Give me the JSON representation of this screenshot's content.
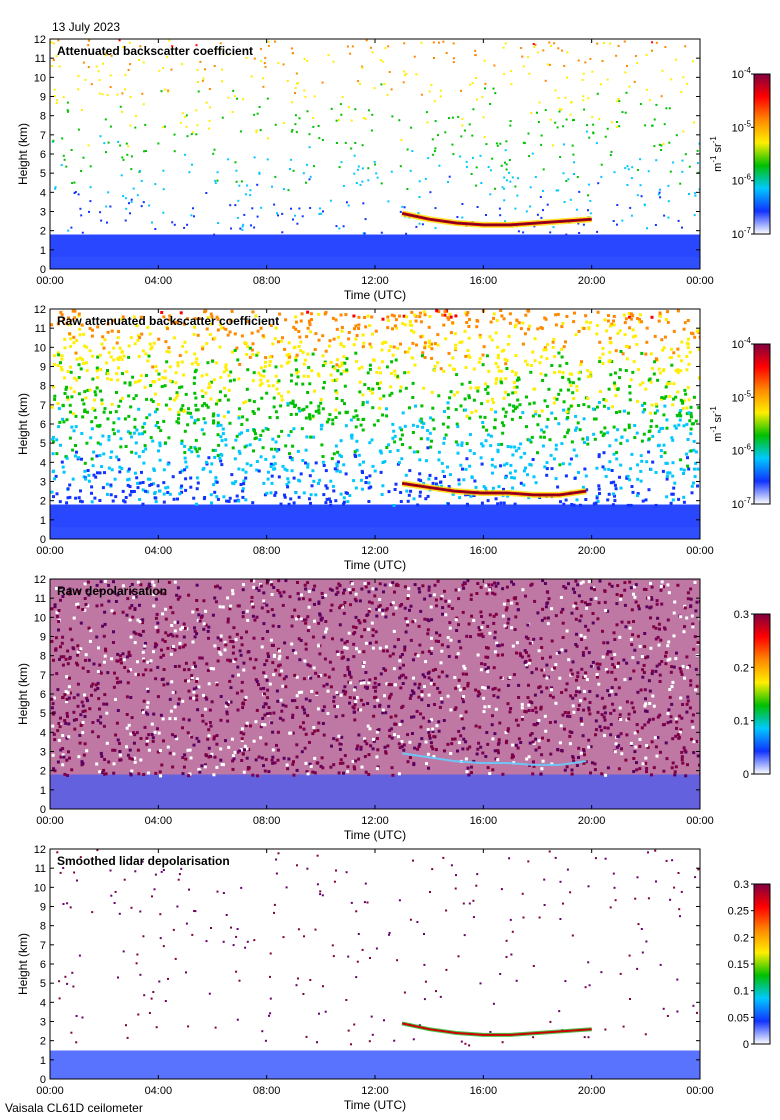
{
  "header": {
    "date": "13 July 2023"
  },
  "footer": {
    "instrument": "Vaisala CL61D ceilometer"
  },
  "colors": {
    "frame": "#000000",
    "background": "#ffffff"
  },
  "chart_data": [
    {
      "type": "heatmap",
      "title": "Attenuated backscatter coefficient",
      "xlabel": "Time (UTC)",
      "ylabel": "Height (km)",
      "x_ticks": [
        "00:00",
        "04:00",
        "08:00",
        "12:00",
        "16:00",
        "20:00",
        "00:00"
      ],
      "x_range_hours": [
        0,
        24
      ],
      "y_ticks": [
        "0",
        "1",
        "2",
        "3",
        "4",
        "5",
        "6",
        "7",
        "8",
        "9",
        "10",
        "11",
        "12"
      ],
      "ylim": [
        0,
        12
      ],
      "colorbar": {
        "scale": "log",
        "ticks": [
          {
            "value": 1e-07,
            "base": "10",
            "exp": "-7"
          },
          {
            "value": 1e-06,
            "base": "10",
            "exp": "-6"
          },
          {
            "value": 1e-05,
            "base": "10",
            "exp": "-5"
          },
          {
            "value": 0.0001,
            "base": "10",
            "exp": "-4"
          }
        ],
        "unit": {
          "m": "m",
          "m_exp": "-1",
          "sr": "sr",
          "sr_exp": "-1"
        },
        "colormap": [
          "#ffffff",
          "#1133ff",
          "#00c8ff",
          "#00c000",
          "#ffee00",
          "#ff8800",
          "#ff0000",
          "#800040"
        ]
      },
      "features": {
        "boundary_layer_top_km": 1.8,
        "cloud_layer": {
          "start_hour": 13.0,
          "end_hour": 20.0,
          "height_km": [
            2.9,
            2.6,
            2.4,
            2.3,
            2.3,
            2.4,
            2.5,
            2.6
          ]
        },
        "noise_density": 0.35
      }
    },
    {
      "type": "heatmap",
      "title": "Raw attenuated backscatter coefficient",
      "xlabel": "Time (UTC)",
      "ylabel": "Height (km)",
      "x_ticks": [
        "00:00",
        "04:00",
        "08:00",
        "12:00",
        "16:00",
        "20:00",
        "00:00"
      ],
      "x_range_hours": [
        0,
        24
      ],
      "y_ticks": [
        "0",
        "1",
        "2",
        "3",
        "4",
        "5",
        "6",
        "7",
        "8",
        "9",
        "10",
        "11",
        "12"
      ],
      "ylim": [
        0,
        12
      ],
      "colorbar": {
        "scale": "log",
        "ticks": [
          {
            "value": 1e-07,
            "base": "10",
            "exp": "-7"
          },
          {
            "value": 1e-06,
            "base": "10",
            "exp": "-6"
          },
          {
            "value": 1e-05,
            "base": "10",
            "exp": "-5"
          },
          {
            "value": 0.0001,
            "base": "10",
            "exp": "-4"
          }
        ],
        "unit": {
          "m": "m",
          "m_exp": "-1",
          "sr": "sr",
          "sr_exp": "-1"
        },
        "colormap": [
          "#ffffff",
          "#1133ff",
          "#00c8ff",
          "#00c000",
          "#ffee00",
          "#ff8800",
          "#ff0000",
          "#800040"
        ]
      },
      "features": {
        "boundary_layer_top_km": 1.8,
        "cloud_layer": {
          "start_hour": 13.0,
          "end_hour": 19.8,
          "height_km": [
            2.9,
            2.7,
            2.5,
            2.4,
            2.4,
            2.3,
            2.3,
            2.5
          ]
        },
        "noise_density": 1.0
      }
    },
    {
      "type": "heatmap",
      "title": "Raw depolarisation",
      "xlabel": "Time (UTC)",
      "ylabel": "Height (km)",
      "x_ticks": [
        "00:00",
        "04:00",
        "08:00",
        "12:00",
        "16:00",
        "20:00",
        "00:00"
      ],
      "x_range_hours": [
        0,
        24
      ],
      "y_ticks": [
        "0",
        "1",
        "2",
        "3",
        "4",
        "5",
        "6",
        "7",
        "8",
        "9",
        "10",
        "11",
        "12"
      ],
      "ylim": [
        0,
        12
      ],
      "colorbar": {
        "scale": "linear",
        "ticks": [
          {
            "value": 0,
            "label": "0"
          },
          {
            "value": 0.1,
            "label": "0.1"
          },
          {
            "value": 0.2,
            "label": "0.2"
          },
          {
            "value": 0.3,
            "label": "0.3"
          }
        ],
        "range": [
          0,
          0.3
        ],
        "colormap": [
          "#ffffff",
          "#1133ff",
          "#00c8ff",
          "#00c000",
          "#ffee00",
          "#ff8800",
          "#ff0000",
          "#800040"
        ]
      },
      "features": {
        "boundary_layer_top_km": 1.8,
        "cloud_layer": {
          "start_hour": 13.0,
          "end_hour": 19.8,
          "height_km": [
            2.9,
            2.7,
            2.5,
            2.4,
            2.4,
            2.3,
            2.3,
            2.5
          ]
        },
        "noise_density": 1.0
      }
    },
    {
      "type": "heatmap",
      "title": "Smoothed lidar depolarisation",
      "xlabel": "Time (UTC)",
      "ylabel": "Height (km)",
      "x_ticks": [
        "00:00",
        "04:00",
        "08:00",
        "12:00",
        "16:00",
        "20:00",
        "00:00"
      ],
      "x_range_hours": [
        0,
        24
      ],
      "y_ticks": [
        "0",
        "1",
        "2",
        "3",
        "4",
        "5",
        "6",
        "7",
        "8",
        "9",
        "10",
        "11",
        "12"
      ],
      "ylim": [
        0,
        12
      ],
      "colorbar": {
        "scale": "linear",
        "ticks": [
          {
            "value": 0,
            "label": "0"
          },
          {
            "value": 0.05,
            "label": "0.05"
          },
          {
            "value": 0.1,
            "label": "0.1"
          },
          {
            "value": 0.15,
            "label": "0.15"
          },
          {
            "value": 0.2,
            "label": "0.2"
          },
          {
            "value": 0.25,
            "label": "0.25"
          },
          {
            "value": 0.3,
            "label": "0.3"
          }
        ],
        "range": [
          0,
          0.3
        ],
        "colormap": [
          "#ffffff",
          "#1133ff",
          "#00c8ff",
          "#00c000",
          "#ffee00",
          "#ff8800",
          "#ff0000",
          "#800040"
        ]
      },
      "features": {
        "boundary_layer_top_km": 1.8,
        "cloud_layer": {
          "start_hour": 13.0,
          "end_hour": 20.0,
          "height_km": [
            2.9,
            2.6,
            2.4,
            2.3,
            2.3,
            2.4,
            2.5,
            2.6
          ]
        },
        "noise_density": 0.12
      }
    }
  ]
}
